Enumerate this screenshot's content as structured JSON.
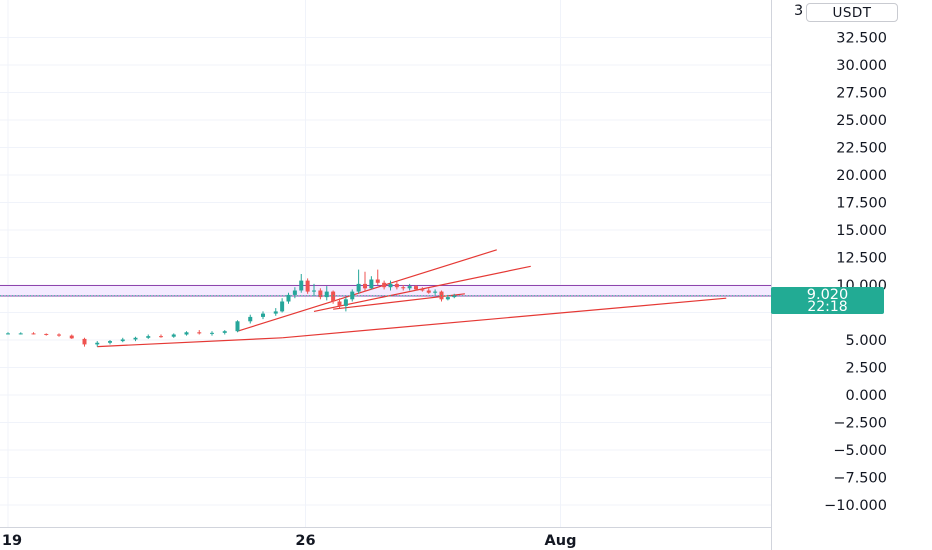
{
  "chart_data": {
    "type": "candlestick",
    "quote_currency": "USDT",
    "y_axis": {
      "range": [
        -11.5,
        37.5
      ],
      "tick_labels": [
        "32.500",
        "30.000",
        "27.500",
        "25.000",
        "22.500",
        "20.000",
        "17.500",
        "15.000",
        "12.500",
        "10.000",
        "5.000",
        "2.500",
        "0.000",
        "−2.500",
        "−5.000",
        "−7.500",
        "−10.000"
      ],
      "tick_values": [
        32.5,
        30,
        27.5,
        25,
        22.5,
        20,
        17.5,
        15,
        12.5,
        10,
        5,
        2.5,
        0,
        -2.5,
        -5,
        -7.5,
        -10
      ],
      "clipped_top_label": "3"
    },
    "x_axis": {
      "tick_labels": [
        "19",
        "26",
        "Aug"
      ],
      "tick_positions": [
        0,
        7,
        13
      ]
    },
    "last_price": {
      "value": "9.020",
      "countdown": "22:18",
      "color": "#22ab94"
    },
    "candles": [
      [
        0.0,
        5.6,
        5.7,
        5.5,
        5.6
      ],
      [
        0.3,
        5.6,
        5.7,
        5.5,
        5.6
      ],
      [
        0.6,
        5.6,
        5.7,
        5.5,
        5.55
      ],
      [
        0.9,
        5.55,
        5.6,
        5.4,
        5.5
      ],
      [
        1.2,
        5.5,
        5.6,
        5.3,
        5.4
      ],
      [
        1.5,
        5.4,
        5.5,
        5.1,
        5.15
      ],
      [
        1.8,
        5.1,
        5.2,
        4.4,
        4.6
      ],
      [
        2.1,
        4.6,
        4.9,
        4.4,
        4.75
      ],
      [
        2.4,
        4.75,
        5.0,
        4.6,
        4.9
      ],
      [
        2.7,
        4.9,
        5.2,
        4.8,
        5.05
      ],
      [
        3.0,
        5.05,
        5.3,
        4.9,
        5.2
      ],
      [
        3.3,
        5.2,
        5.5,
        5.1,
        5.35
      ],
      [
        3.6,
        5.35,
        5.5,
        5.2,
        5.3
      ],
      [
        3.9,
        5.3,
        5.6,
        5.2,
        5.5
      ],
      [
        4.2,
        5.5,
        5.8,
        5.4,
        5.7
      ],
      [
        4.5,
        5.7,
        5.9,
        5.5,
        5.6
      ],
      [
        4.8,
        5.6,
        5.8,
        5.4,
        5.65
      ],
      [
        5.1,
        5.65,
        5.9,
        5.5,
        5.8
      ],
      [
        5.4,
        5.8,
        6.8,
        5.7,
        6.7
      ],
      [
        5.7,
        6.7,
        7.3,
        6.5,
        7.1
      ],
      [
        6.0,
        7.1,
        7.6,
        6.9,
        7.4
      ],
      [
        6.3,
        7.4,
        7.9,
        7.2,
        7.6
      ],
      [
        6.45,
        7.6,
        8.8,
        7.5,
        8.5
      ],
      [
        6.6,
        8.5,
        9.3,
        8.3,
        9.1
      ],
      [
        6.75,
        9.1,
        9.8,
        8.8,
        9.5
      ],
      [
        6.9,
        9.5,
        11.0,
        9.3,
        10.4
      ],
      [
        7.05,
        10.4,
        10.6,
        9.2,
        9.4
      ],
      [
        7.2,
        9.4,
        10.1,
        9.0,
        9.5
      ],
      [
        7.35,
        9.5,
        9.7,
        8.7,
        8.9
      ],
      [
        7.5,
        8.9,
        9.9,
        8.6,
        9.4
      ],
      [
        7.65,
        9.4,
        9.5,
        8.3,
        8.5
      ],
      [
        7.8,
        8.5,
        8.8,
        7.9,
        8.1
      ],
      [
        7.95,
        8.1,
        8.9,
        7.6,
        8.7
      ],
      [
        8.1,
        8.7,
        9.6,
        8.5,
        9.4
      ],
      [
        8.25,
        9.4,
        11.4,
        9.2,
        10.1
      ],
      [
        8.4,
        10.1,
        11.2,
        9.4,
        9.7
      ],
      [
        8.55,
        9.7,
        10.8,
        9.6,
        10.5
      ],
      [
        8.7,
        10.5,
        11.4,
        10.0,
        10.2
      ],
      [
        8.85,
        10.2,
        10.4,
        9.6,
        9.8
      ],
      [
        9.0,
        9.8,
        10.4,
        9.5,
        10.1
      ],
      [
        9.15,
        10.1,
        10.3,
        9.6,
        9.8
      ],
      [
        9.3,
        9.8,
        10.0,
        9.5,
        9.7
      ],
      [
        9.45,
        9.7,
        10.1,
        9.5,
        9.9
      ],
      [
        9.6,
        9.9,
        10.0,
        9.5,
        9.6
      ],
      [
        9.75,
        9.6,
        9.8,
        9.4,
        9.5
      ],
      [
        9.9,
        9.5,
        9.7,
        9.2,
        9.3
      ],
      [
        10.05,
        9.3,
        9.6,
        9.1,
        9.4
      ],
      [
        10.2,
        9.4,
        9.5,
        8.5,
        8.7
      ],
      [
        10.35,
        8.7,
        9.1,
        8.6,
        8.9
      ],
      [
        10.5,
        8.9,
        9.2,
        8.8,
        9.02
      ]
    ],
    "lines": [
      {
        "color": "#e53935",
        "x": [
          2.1,
          6.45
        ],
        "y": [
          4.4,
          5.2
        ]
      },
      {
        "color": "#e53935",
        "x": [
          5.4,
          11.5
        ],
        "y": [
          5.8,
          13.2
        ]
      },
      {
        "color": "#e53935",
        "x": [
          7.2,
          12.3
        ],
        "y": [
          7.6,
          11.7
        ]
      },
      {
        "color": "#e53935",
        "x": [
          6.45,
          16.9
        ],
        "y": [
          5.2,
          8.8
        ]
      },
      {
        "color": "#e53935",
        "x": [
          7.65,
          10.75
        ],
        "y": [
          7.8,
          9.2
        ]
      }
    ],
    "zones": [
      {
        "y_bottom": 9.0,
        "y_top": 9.95,
        "fill": "#f2e8ff",
        "edge": "#8e44ad"
      }
    ]
  }
}
